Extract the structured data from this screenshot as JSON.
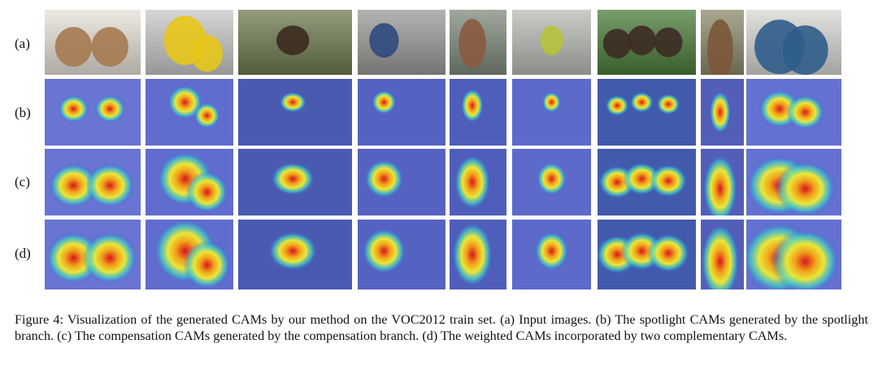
{
  "rows": [
    {
      "label": "(a)",
      "kind": "input"
    },
    {
      "label": "(b)",
      "kind": "spotlight"
    },
    {
      "label": "(c)",
      "kind": "compensation"
    },
    {
      "label": "(d)",
      "kind": "weighted"
    }
  ],
  "columns": [
    {
      "subject": "kittens",
      "bg": "#e8e2da",
      "fg": "#a57a50"
    },
    {
      "subject": "motorbike",
      "bg": "#c9c9c9",
      "fg": "#e6c619"
    },
    {
      "subject": "horse-field",
      "bg": "#6f7a52",
      "fg": "#3b2a1e"
    },
    {
      "subject": "child-hedgehog",
      "bg": "#9a9a98",
      "fg": "#2f4a80"
    },
    {
      "subject": "pony",
      "bg": "#7f8b7c",
      "fg": "#8a5a3f"
    },
    {
      "subject": "bird-fence",
      "bg": "#b9bcb6",
      "fg": "#b6c43a"
    },
    {
      "subject": "horse-riders",
      "bg": "#4b7d3a",
      "fg": "#3d2b24"
    },
    {
      "subject": "cow",
      "bg": "#8d8a6a",
      "fg": "#7c5838"
    },
    {
      "subject": "car",
      "bg": "#d8d8d4",
      "fg": "#2f5d8a"
    }
  ],
  "caption": {
    "text": "Figure 4: Visualization of the generated CAMs by our method on the VOC2012 train set. (a) Input images. (b) The spotlight CAMs generated by the spotlight branch. (c) The compensation CAMs generated by the compensation branch. (d) The weighted CAMs incorporated by two complementary CAMs."
  }
}
